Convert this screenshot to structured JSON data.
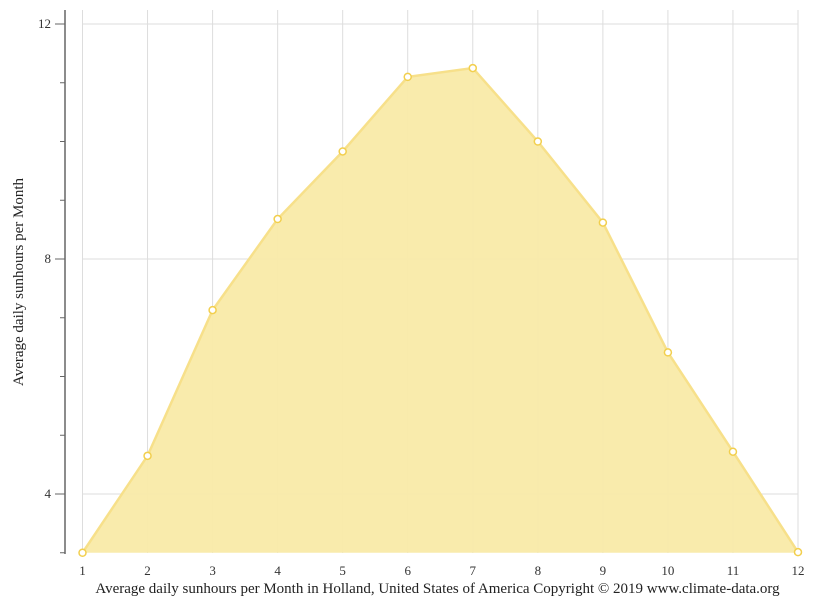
{
  "chart_data": {
    "type": "area",
    "title": "",
    "xlabel": "Average daily sunhours per Month in Holland, United States of America Copyright © 2019 www.climate-data.org",
    "ylabel": "Average daily sunhours per Month",
    "categories": [
      "1",
      "2",
      "3",
      "4",
      "5",
      "6",
      "7",
      "8",
      "9",
      "10",
      "11",
      "12"
    ],
    "series": [
      {
        "name": "Average daily sunhours",
        "values": [
          3.0,
          4.65,
          7.13,
          8.68,
          9.83,
          11.1,
          11.25,
          10.0,
          8.62,
          6.41,
          4.72,
          3.01
        ]
      }
    ],
    "ylim": [
      3,
      12.25
    ],
    "yticks_major": [
      4,
      8,
      12
    ],
    "yticks_minor": [
      3,
      5,
      6,
      7,
      9,
      10,
      11
    ],
    "grid": true,
    "legend": "none",
    "colors": {
      "fill": "#f9eaa8",
      "line": "#f7e08a",
      "marker_stroke": "#f2cf4e",
      "marker_fill": "#ffffff",
      "grid": "#dddddd",
      "axis": "#666666"
    }
  },
  "caption": "Average daily sunhours per Month in Holland, United States of America Copyright © 2019 www.climate-data.org"
}
